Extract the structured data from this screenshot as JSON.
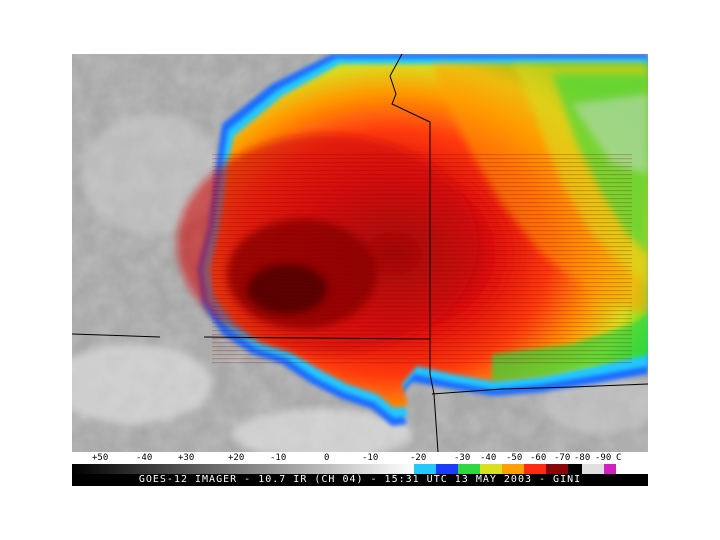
{
  "scale": {
    "labels": [
      "+50",
      "-40",
      "+30",
      "+20",
      "-10",
      "0",
      "-10",
      "-20",
      "-30",
      "-40",
      "-50",
      "-60",
      "-70",
      "-80",
      "-90",
      "C"
    ]
  },
  "caption": "GOES-12 IMAGER - 10.7 IR (CH 04) - 15:31 UTC 13 MAY 2003 - GINI"
}
